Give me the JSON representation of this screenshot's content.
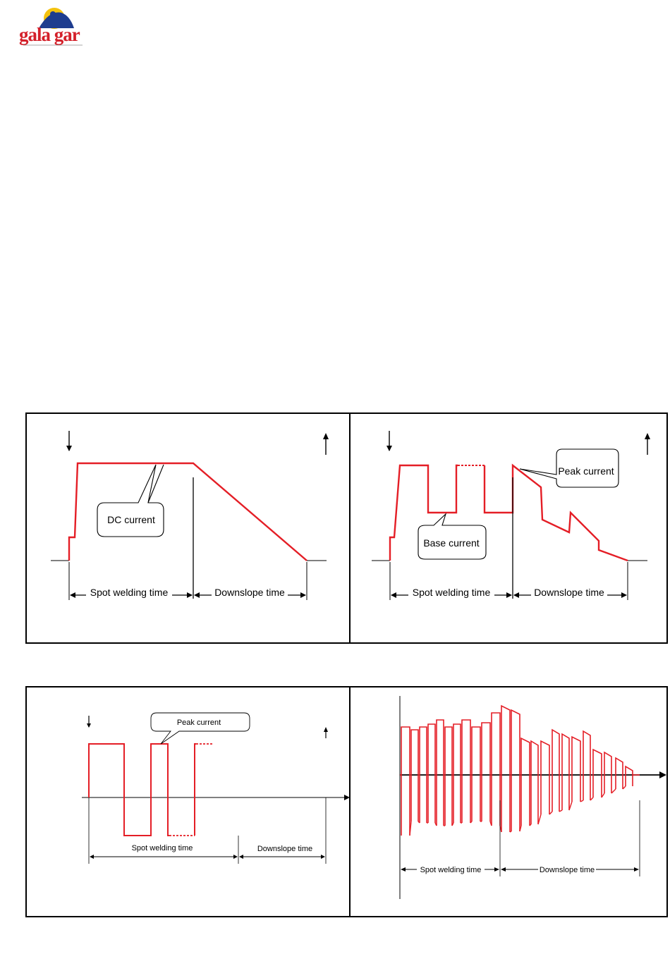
{
  "logo": {
    "text": "gala gar",
    "tagline": ""
  },
  "panels": {
    "top_left": {
      "dc_label": "DC current",
      "spot_label": "Spot welding time",
      "down_label": "Downslope time"
    },
    "top_right": {
      "peak_label": "Peak current",
      "base_label": "Base current",
      "spot_label": "Spot  welding time",
      "down_label": "Downslope time"
    },
    "bottom_left": {
      "peak_label": "Peak current",
      "spot_label": "Spot welding time",
      "down_label": "Downslope time"
    },
    "bottom_right": {
      "spot_label": "Spot welding time",
      "down_label": "Downslope time"
    }
  },
  "colors": {
    "waveform": "#e41e26",
    "line": "#000000"
  }
}
